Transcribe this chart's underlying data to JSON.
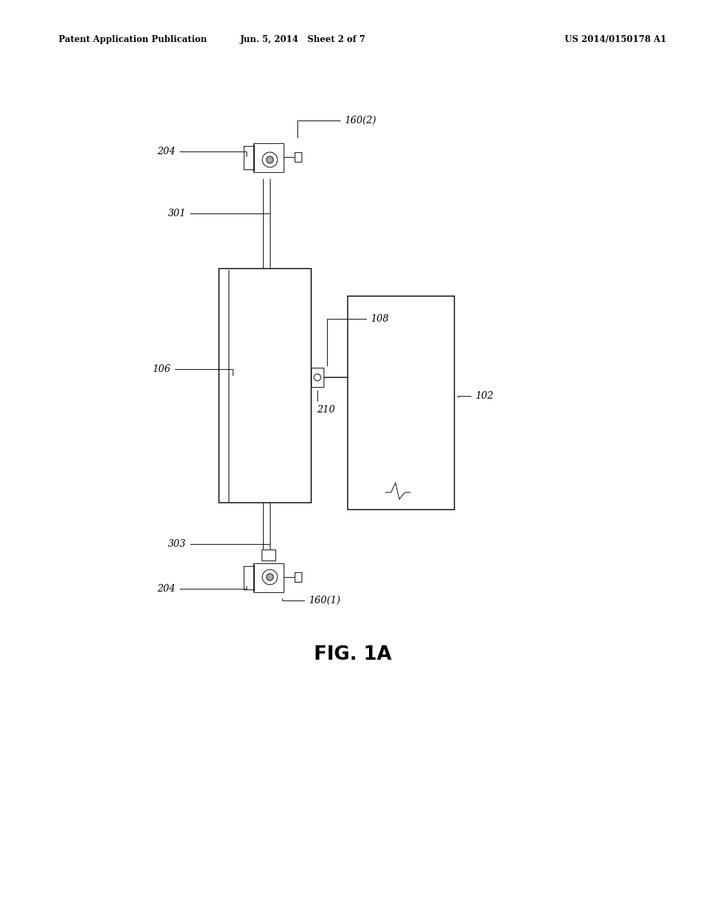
{
  "bg_color": "#ffffff",
  "line_color": "#1a1a1a",
  "header_left": "Patent Application Publication",
  "header_mid": "Jun. 5, 2014   Sheet 2 of 7",
  "header_right": "US 2014/0150178 A1",
  "figure_label": "FIG. 1A",
  "lw_thin": 0.8,
  "lw_med": 1.2,
  "lw_thick": 1.8,
  "label_fontsize": 10,
  "header_fontsize": 9,
  "fig_label_fontsize": 20
}
